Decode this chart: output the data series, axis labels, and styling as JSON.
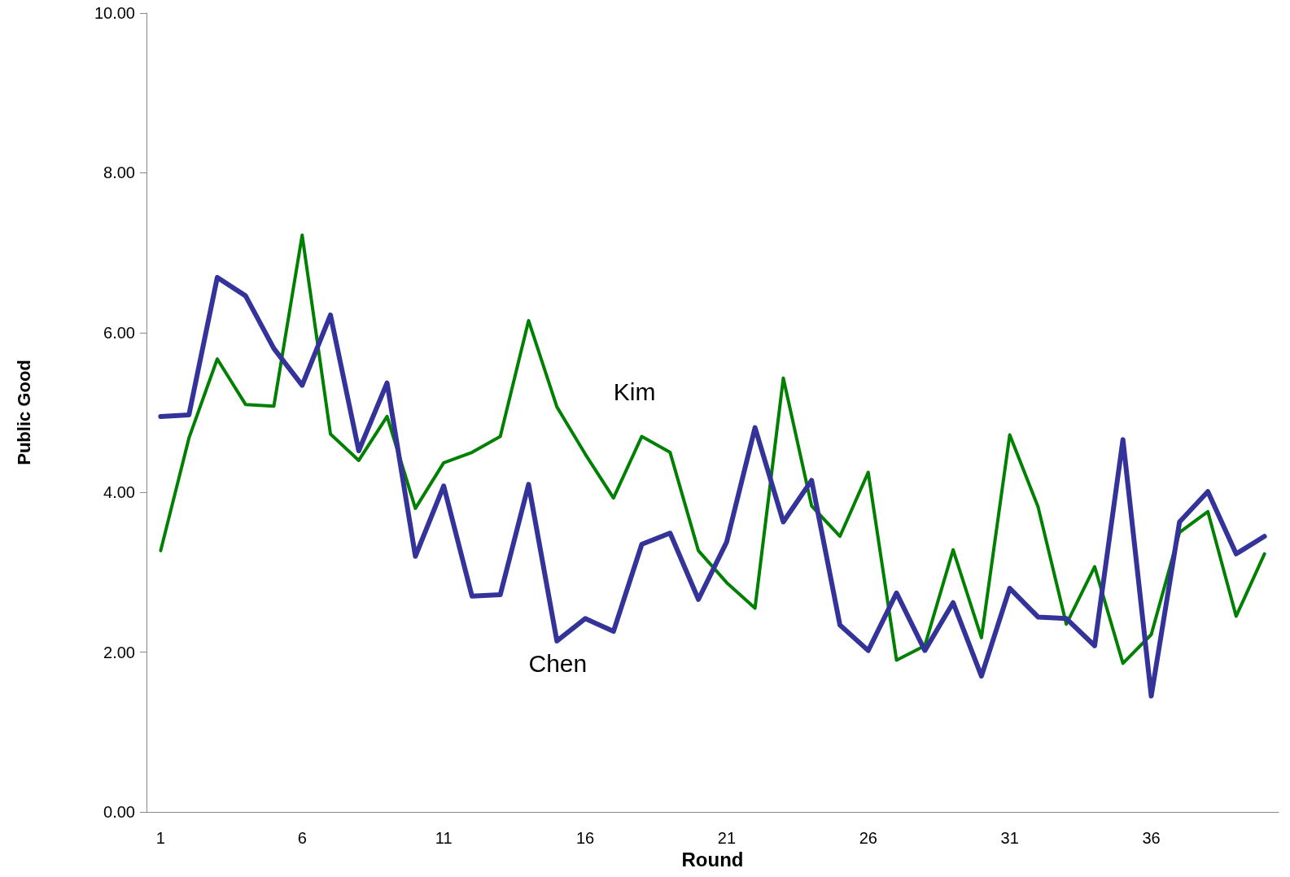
{
  "chart_data": {
    "type": "line",
    "xlabel": "Round",
    "ylabel": "Public Good",
    "categories": [
      "1",
      null,
      null,
      null,
      null,
      "6",
      null,
      null,
      null,
      null,
      "11",
      null,
      null,
      null,
      null,
      "16",
      null,
      null,
      null,
      null,
      "21",
      null,
      null,
      null,
      null,
      "26",
      null,
      null,
      null,
      null,
      "31",
      null,
      null,
      null,
      null,
      "36",
      null,
      null,
      null,
      null
    ],
    "series": [
      {
        "name": "Kim",
        "color": "#008000",
        "values": [
          3.27,
          4.68,
          5.67,
          5.1,
          5.08,
          7.22,
          4.73,
          4.4,
          4.95,
          3.8,
          4.37,
          4.5,
          4.7,
          6.15,
          5.07,
          4.48,
          3.93,
          4.7,
          4.5,
          3.27,
          2.87,
          2.55,
          5.43,
          3.83,
          3.45,
          4.25,
          1.9,
          2.08,
          3.28,
          2.18,
          4.72,
          3.82,
          2.35,
          3.07,
          1.86,
          2.22,
          3.5,
          3.76,
          2.45,
          3.23
        ]
      },
      {
        "name": "Chen",
        "color": "#333399",
        "values": [
          4.95,
          4.97,
          6.69,
          6.46,
          5.8,
          5.34,
          6.22,
          4.52,
          5.37,
          3.2,
          4.08,
          2.7,
          2.72,
          4.1,
          2.14,
          2.42,
          2.26,
          3.35,
          3.49,
          2.66,
          3.38,
          4.81,
          3.63,
          4.15,
          2.34,
          2.02,
          2.74,
          2.02,
          2.62,
          1.7,
          2.8,
          2.44,
          2.42,
          2.08,
          4.66,
          1.45,
          3.63,
          4.01,
          3.23,
          3.45
        ]
      }
    ],
    "ylim": [
      0,
      10
    ],
    "yticks": [
      {
        "value": 0,
        "label": "0.00"
      },
      {
        "value": 2,
        "label": "2.00"
      },
      {
        "value": 4,
        "label": "4.00"
      },
      {
        "value": 6,
        "label": "6.00"
      },
      {
        "value": 8,
        "label": "8.00"
      },
      {
        "value": 10,
        "label": "10.00"
      }
    ],
    "grid": false,
    "legend": false,
    "marker": "none",
    "line_style": "solid"
  }
}
